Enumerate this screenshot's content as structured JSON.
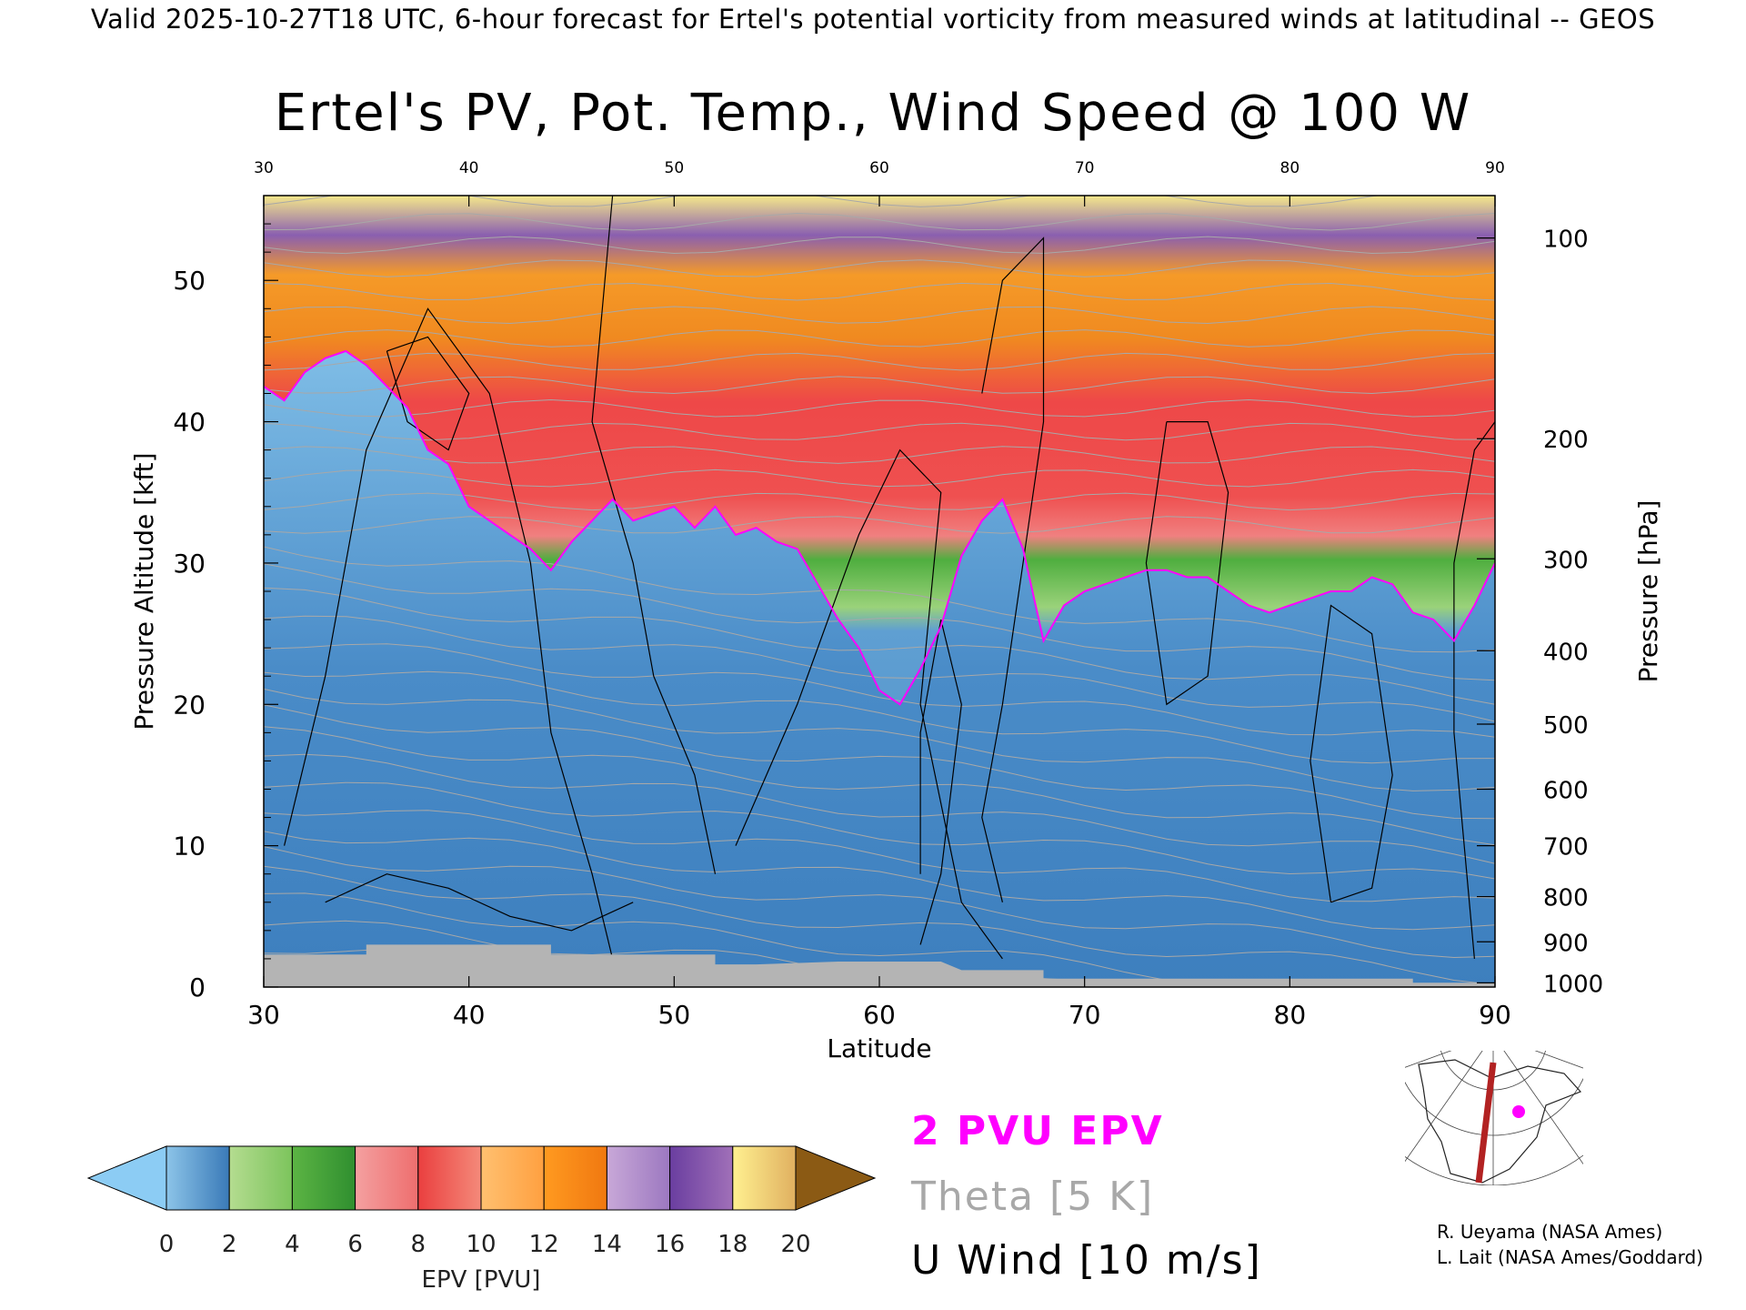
{
  "header": "Valid 2025-10-27T18 UTC, 6-hour forecast for Ertel's potential vorticity from measured winds at latitudinal -- GEOS",
  "title": "Ertel's PV, Pot. Temp., Wind Speed @ 100 W",
  "legend": {
    "epv_contour": "2 PVU EPV",
    "theta": "Theta [5 K]",
    "u_wind": "U Wind [10 m/s]"
  },
  "credits": [
    "R. Ueyama (NASA Ames)",
    "L. Lait (NASA Ames/Goddard)"
  ],
  "colors": {
    "epv_contour": "#ff00ff",
    "theta_contour": "#a8a8a8",
    "wind_contour": "#000000",
    "terrain": "#b4b4b4",
    "map_track": "#b22222",
    "map_marker": "#ff00ff"
  },
  "chart_data": {
    "type": "heatmap",
    "xlabel": "Latitude",
    "ylabel_left": "Pressure Altitude [kft]",
    "ylabel_right": "Pressure [hPa]",
    "xlim": [
      30,
      90
    ],
    "ylim_kft": [
      0,
      56
    ],
    "x_ticks": [
      "30",
      "40",
      "50",
      "60",
      "70",
      "80",
      "90"
    ],
    "y_ticks_left": [
      "0",
      "10",
      "20",
      "30",
      "40",
      "50"
    ],
    "y_ticks_right": [
      {
        "label": "100",
        "kft": 53.0
      },
      {
        "label": "200",
        "kft": 38.8
      },
      {
        "label": "300",
        "kft": 30.3
      },
      {
        "label": "400",
        "kft": 23.8
      },
      {
        "label": "500",
        "kft": 18.6
      },
      {
        "label": "600",
        "kft": 14.0
      },
      {
        "label": "700",
        "kft": 10.0
      },
      {
        "label": "800",
        "kft": 6.4
      },
      {
        "label": "900",
        "kft": 3.2
      },
      {
        "label": "1000",
        "kft": 0.3
      }
    ],
    "colorbar": {
      "label": "EPV [PVU]",
      "ticks": [
        "0",
        "2",
        "4",
        "6",
        "8",
        "10",
        "12",
        "14",
        "16",
        "18",
        "20"
      ],
      "bins": [
        {
          "from": 0,
          "to": 2,
          "c1": "#8cc4e8",
          "c2": "#3a7ab8"
        },
        {
          "from": 2,
          "to": 4,
          "c1": "#b4dc90",
          "c2": "#7cc45c"
        },
        {
          "from": 4,
          "to": 6,
          "c1": "#5cb444",
          "c2": "#2f8f2f"
        },
        {
          "from": 6,
          "to": 8,
          "c1": "#f4a0a0",
          "c2": "#ee6e6e"
        },
        {
          "from": 8,
          "to": 10,
          "c1": "#ea3f3f",
          "c2": "#f48a7a"
        },
        {
          "from": 10,
          "to": 12,
          "c1": "#ffc070",
          "c2": "#ffa040"
        },
        {
          "from": 12,
          "to": 14,
          "c1": "#ff9a20",
          "c2": "#f07810"
        },
        {
          "from": 14,
          "to": 16,
          "c1": "#c8a8d8",
          "c2": "#9c78c0"
        },
        {
          "from": 16,
          "to": 18,
          "c1": "#6a3ea0",
          "c2": "#a070b8"
        },
        {
          "from": 18,
          "to": 20,
          "c1": "#fff090",
          "c2": "#e0b060"
        }
      ],
      "under_color": "#8cccf4",
      "over_color": "#8b5a14"
    },
    "tropopause_2pvu_kft": [
      [
        30,
        42.5
      ],
      [
        31,
        41.5
      ],
      [
        32,
        43.5
      ],
      [
        33,
        44.5
      ],
      [
        34,
        45
      ],
      [
        35,
        44
      ],
      [
        36,
        42.5
      ],
      [
        37,
        41
      ],
      [
        38,
        38
      ],
      [
        39,
        37
      ],
      [
        40,
        34
      ],
      [
        41,
        33
      ],
      [
        42,
        32
      ],
      [
        43,
        31
      ],
      [
        44,
        29.5
      ],
      [
        45,
        31.5
      ],
      [
        46,
        33
      ],
      [
        47,
        34.5
      ],
      [
        48,
        33
      ],
      [
        49,
        33.5
      ],
      [
        50,
        34
      ],
      [
        51,
        32.5
      ],
      [
        52,
        34
      ],
      [
        53,
        32
      ],
      [
        54,
        32.5
      ],
      [
        55,
        31.5
      ],
      [
        56,
        31
      ],
      [
        57,
        28.5
      ],
      [
        58,
        26
      ],
      [
        59,
        24
      ],
      [
        60,
        21
      ],
      [
        61,
        20
      ],
      [
        62,
        22.5
      ],
      [
        63,
        25.5
      ],
      [
        64,
        30.5
      ],
      [
        65,
        33
      ],
      [
        66,
        34.5
      ],
      [
        67,
        31
      ],
      [
        68,
        24.5
      ],
      [
        69,
        27
      ],
      [
        70,
        28
      ],
      [
        71,
        28.5
      ],
      [
        72,
        29
      ],
      [
        73,
        29.5
      ],
      [
        74,
        29.5
      ],
      [
        75,
        29
      ],
      [
        76,
        29
      ],
      [
        77,
        28
      ],
      [
        78,
        27
      ],
      [
        79,
        26.5
      ],
      [
        80,
        27
      ],
      [
        81,
        27.5
      ],
      [
        82,
        28
      ],
      [
        83,
        28
      ],
      [
        84,
        29
      ],
      [
        85,
        28.5
      ],
      [
        86,
        26.5
      ],
      [
        87,
        26
      ],
      [
        88,
        24.5
      ],
      [
        89,
        27
      ],
      [
        90,
        30
      ]
    ],
    "terrain_kft": [
      [
        30,
        2.3
      ],
      [
        35,
        2.3
      ],
      [
        35,
        3.0
      ],
      [
        44,
        3.0
      ],
      [
        44,
        2.3
      ],
      [
        52,
        2.3
      ],
      [
        52,
        1.6
      ],
      [
        54,
        1.6
      ],
      [
        58,
        1.8
      ],
      [
        63,
        1.8
      ],
      [
        64,
        1.2
      ],
      [
        68,
        1.2
      ],
      [
        68,
        0.6
      ],
      [
        86,
        0.6
      ],
      [
        86,
        0.3
      ],
      [
        90,
        0.3
      ]
    ]
  }
}
